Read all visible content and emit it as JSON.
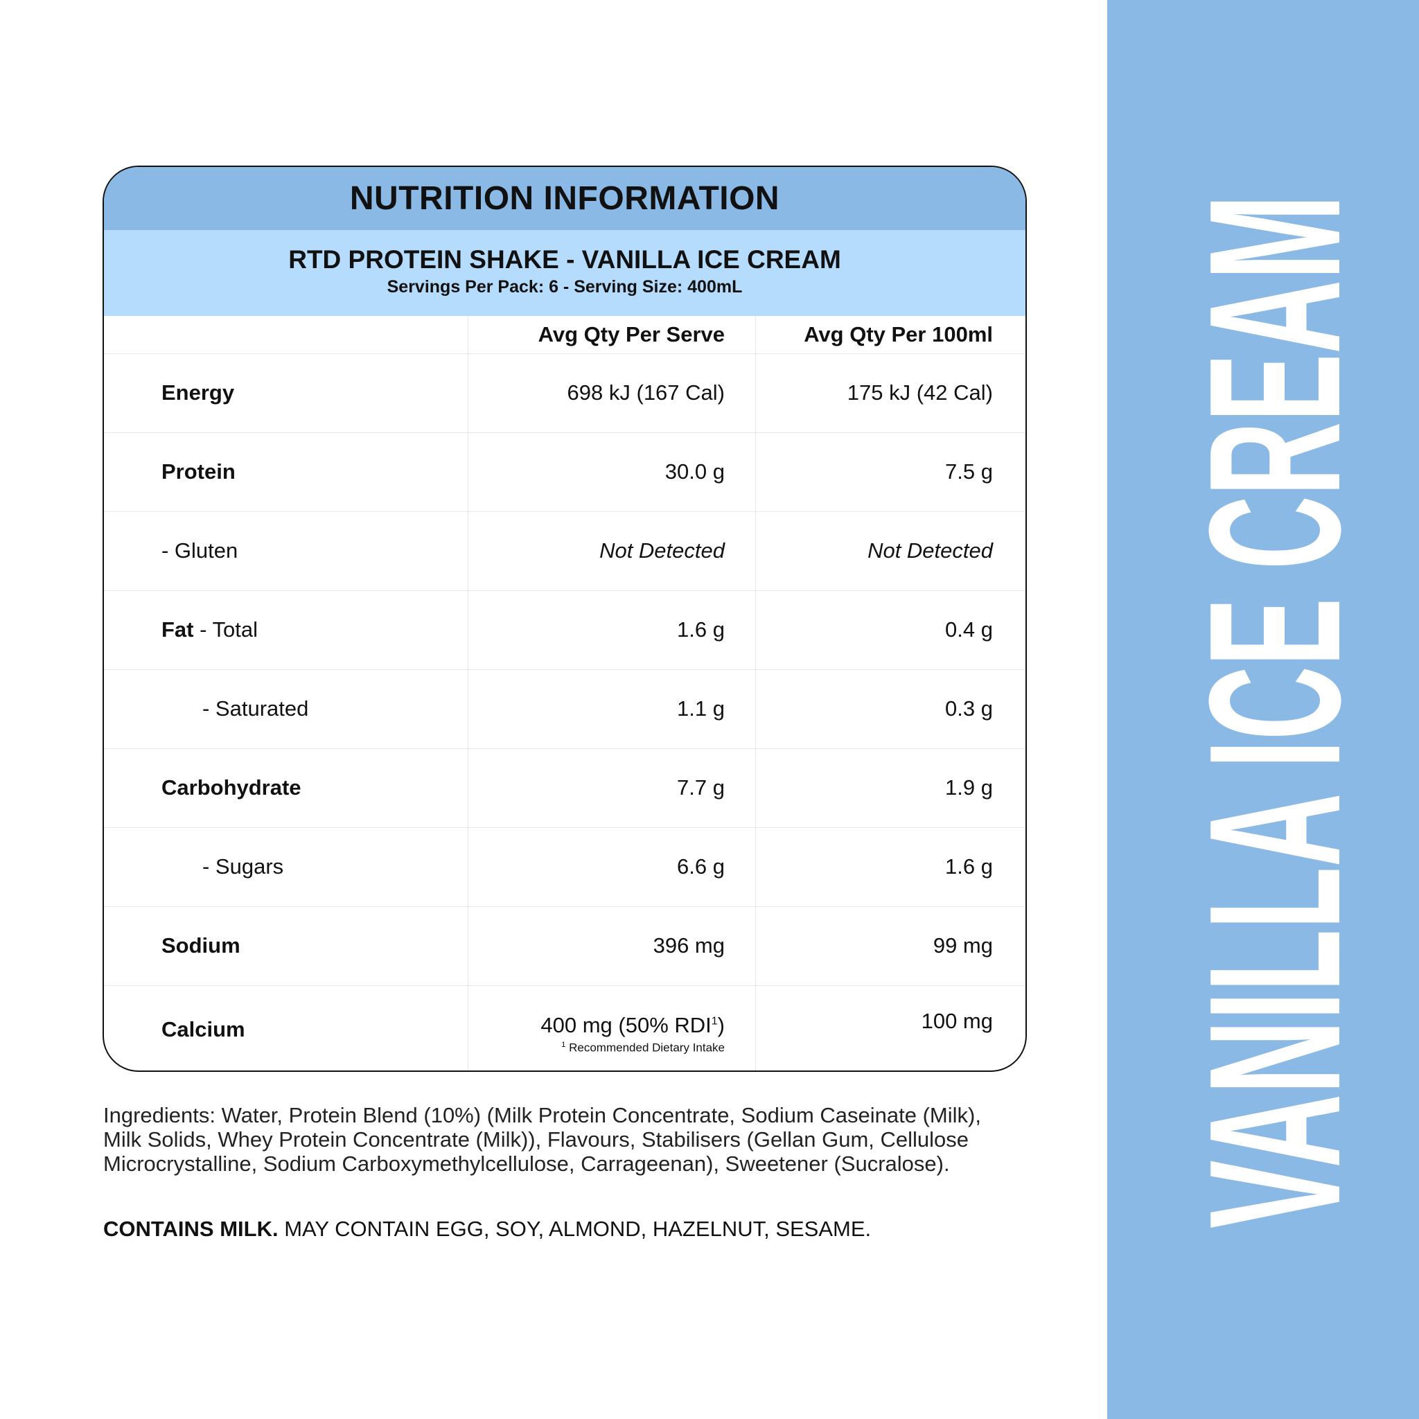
{
  "panel": {
    "title": "NUTRITION INFORMATION",
    "product": "RTD PROTEIN SHAKE - VANILLA ICE CREAM",
    "servings": "Servings Per Pack: 6 - Serving Size: 400mL",
    "columns": [
      "",
      "Avg Qty Per Serve",
      "Avg Qty Per 100ml"
    ],
    "rows": [
      {
        "label": "Energy",
        "per_serve": "698 kJ (167 Cal)",
        "per_100ml": "175 kJ (42 Cal)"
      },
      {
        "label": "Protein",
        "per_serve": "30.0 g",
        "per_100ml": "7.5 g"
      },
      {
        "label": "- Gluten",
        "per_serve": "Not Detected",
        "per_100ml": "Not Detected"
      },
      {
        "label": "Fat",
        "label_suffix": " - Total",
        "per_serve": "1.6 g",
        "per_100ml": "0.4 g"
      },
      {
        "label": "- Saturated",
        "per_serve": "1.1 g",
        "per_100ml": "0.3 g"
      },
      {
        "label": "Carbohydrate",
        "per_serve": "7.7 g",
        "per_100ml": "1.9 g"
      },
      {
        "label": "- Sugars",
        "per_serve": "6.6 g",
        "per_100ml": "1.6 g"
      },
      {
        "label": "Sodium",
        "per_serve": "396 mg",
        "per_100ml": "99 mg"
      },
      {
        "label": "Calcium",
        "per_serve": "400 mg (50% RDI",
        "per_serve_sup": "1",
        "per_serve_close": ")",
        "per_100ml": "100 mg",
        "footnote_mark": "1",
        "footnote": " Recommended Dietary Intake"
      }
    ]
  },
  "ingredients": "Ingredients: Water, Protein Blend (10%) (Milk Protein Concentrate, Sodium Caseinate (Milk), Milk Solids, Whey Protein Concentrate (Milk)),  Flavours, Stabilisers (Gellan Gum, Cellulose Microcrystalline, Sodium Carboxymethylcellulose, Carrageenan), Sweetener (Sucralose).",
  "allergen": {
    "bold": "CONTAINS MILK.",
    "rest": " MAY CONTAIN EGG, SOY, ALMOND, HAZELNUT, SESAME."
  },
  "side_label": "VANILLA ICE CREAM",
  "colors": {
    "header_band": "#89b9e4",
    "sub_band": "#b5dcfd",
    "side_band": "#89b9e4",
    "side_text": "#ffffff"
  }
}
